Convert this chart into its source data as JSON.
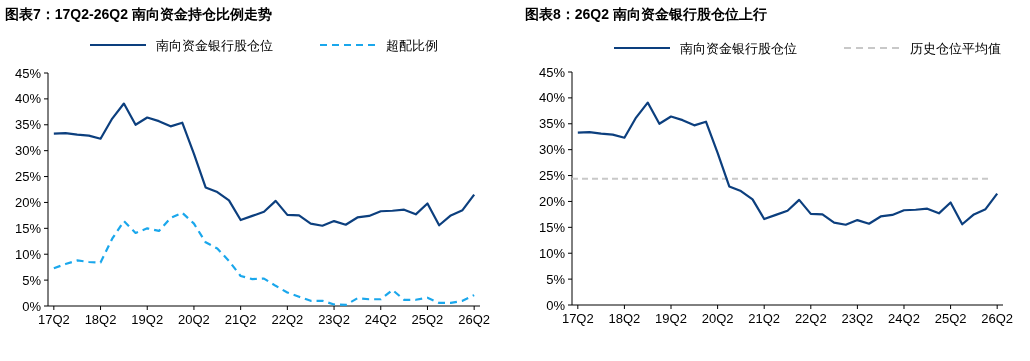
{
  "chart_data": [
    {
      "type": "line",
      "title": "图表7：17Q2-26Q2 南向资金持仓比例走势",
      "legend": "top",
      "categories": [
        "17Q2",
        null,
        null,
        null,
        "18Q2",
        null,
        null,
        null,
        "19Q2",
        null,
        null,
        null,
        "20Q2",
        null,
        null,
        null,
        "21Q2",
        null,
        null,
        null,
        "22Q2",
        null,
        null,
        null,
        "23Q2",
        null,
        null,
        null,
        "24Q2",
        null,
        null,
        null,
        "25Q2",
        null,
        null,
        null,
        "26Q2"
      ],
      "ylim": [
        0,
        45
      ],
      "yticks": [
        {
          "value": 0,
          "label": "0%"
        },
        {
          "value": 5,
          "label": "5%"
        },
        {
          "value": 10,
          "label": "10%"
        },
        {
          "value": 15,
          "label": "15%"
        },
        {
          "value": 20,
          "label": "20%"
        },
        {
          "value": 25,
          "label": "25%"
        },
        {
          "value": 30,
          "label": "30%"
        },
        {
          "value": 35,
          "label": "35%"
        },
        {
          "value": 40,
          "label": "40%"
        },
        {
          "value": 45,
          "label": "45%"
        }
      ],
      "series": [
        {
          "name": "南向资金银行股仓位",
          "color": "#0c3f7e",
          "line_style": "solid",
          "values": [
            33.3,
            33.4,
            33.1,
            32.9,
            32.3,
            36.2,
            39.1,
            35.0,
            36.4,
            35.7,
            34.7,
            35.4,
            29.4,
            22.9,
            22.0,
            20.4,
            16.6,
            17.4,
            18.2,
            20.3,
            17.6,
            17.5,
            15.9,
            15.5,
            16.4,
            15.7,
            17.1,
            17.4,
            18.3,
            18.4,
            18.6,
            17.7,
            19.8,
            15.6,
            17.5,
            18.5,
            21.5
          ]
        },
        {
          "name": "超配比例",
          "color": "#1aa7ec",
          "line_style": "dashed",
          "values": [
            7.3,
            8.1,
            8.8,
            8.5,
            8.4,
            13.0,
            16.4,
            14.1,
            15.0,
            14.5,
            17.0,
            18.0,
            15.9,
            12.3,
            11.1,
            8.7,
            5.8,
            5.2,
            5.3,
            3.9,
            2.6,
            1.8,
            1.0,
            1.0,
            0.3,
            0.2,
            1.5,
            1.3,
            1.3,
            3.1,
            1.2,
            1.2,
            1.6,
            0.6,
            0.6,
            1.0,
            2.1
          ]
        }
      ]
    },
    {
      "type": "line",
      "title": "图表8：26Q2 南向资金银行股仓位上行",
      "legend": "top",
      "categories": [
        "17Q2",
        null,
        null,
        null,
        "18Q2",
        null,
        null,
        null,
        "19Q2",
        null,
        null,
        null,
        "20Q2",
        null,
        null,
        null,
        "21Q2",
        null,
        null,
        null,
        "22Q2",
        null,
        null,
        null,
        "23Q2",
        null,
        null,
        null,
        "24Q2",
        null,
        null,
        null,
        "25Q2",
        null,
        null,
        null,
        "26Q2"
      ],
      "ylim": [
        0,
        45
      ],
      "yticks": [
        {
          "value": 0,
          "label": "0%"
        },
        {
          "value": 5,
          "label": "5%"
        },
        {
          "value": 10,
          "label": "10%"
        },
        {
          "value": 15,
          "label": "15%"
        },
        {
          "value": 20,
          "label": "20%"
        },
        {
          "value": 25,
          "label": "25%"
        },
        {
          "value": 30,
          "label": "30%"
        },
        {
          "value": 35,
          "label": "35%"
        },
        {
          "value": 40,
          "label": "40%"
        },
        {
          "value": 45,
          "label": "45%"
        }
      ],
      "series": [
        {
          "name": "南向资金银行股仓位",
          "color": "#0c3f7e",
          "line_style": "solid",
          "values": [
            33.3,
            33.4,
            33.1,
            32.9,
            32.3,
            36.2,
            39.1,
            35.0,
            36.4,
            35.7,
            34.7,
            35.4,
            29.4,
            22.9,
            22.0,
            20.4,
            16.6,
            17.4,
            18.2,
            20.3,
            17.6,
            17.5,
            15.9,
            15.5,
            16.4,
            15.7,
            17.1,
            17.4,
            18.3,
            18.4,
            18.6,
            17.7,
            19.8,
            15.6,
            17.5,
            18.5,
            21.5
          ]
        }
      ],
      "ref_lines": [
        {
          "axis": "y",
          "value": 24.4,
          "label": "历史仓位平均值",
          "color": "#c8c8c8",
          "line_style": "dashed"
        }
      ]
    }
  ]
}
